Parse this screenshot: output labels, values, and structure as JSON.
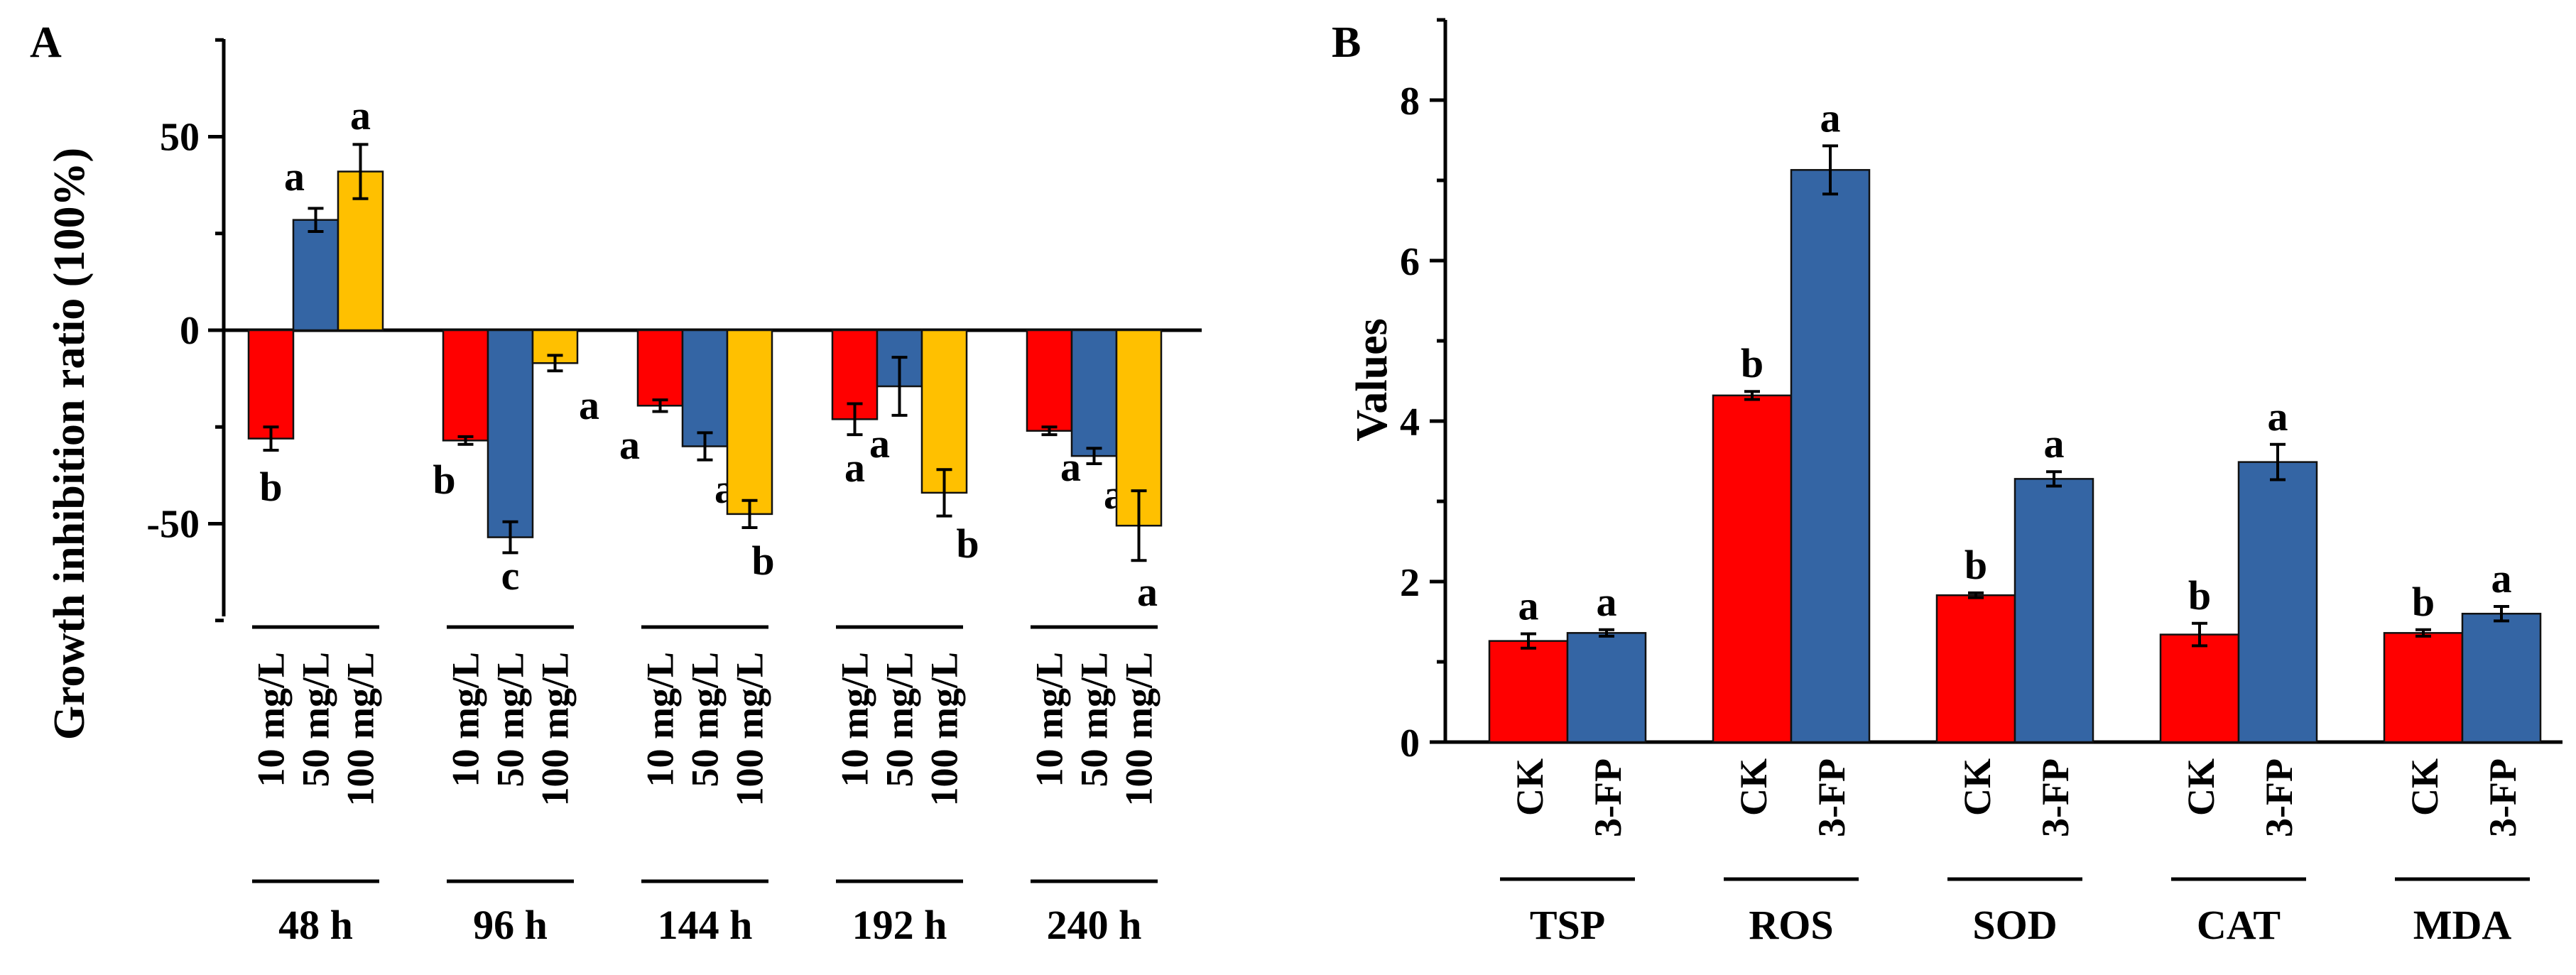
{
  "chart_data": [
    {
      "panel": "A",
      "type": "bar",
      "ylabel": "Growth  inhibition ratio (100%)",
      "ylim": [
        -75,
        75
      ],
      "yticks": [
        -50,
        0,
        50
      ],
      "series_names": [
        "10 mg/L",
        "50 mg/L",
        "100 mg/L"
      ],
      "colors": [
        "#ff0000",
        "#3465a4",
        "#ffc000"
      ],
      "groups": [
        {
          "label": "48 h",
          "values": [
            -28,
            28.5,
            41
          ],
          "errors": [
            3,
            3,
            7
          ],
          "letters": [
            "b",
            "a",
            "a"
          ]
        },
        {
          "label": "96 h",
          "values": [
            -28.5,
            -53.5,
            -8.5
          ],
          "errors": [
            1,
            4,
            2
          ],
          "letters": [
            "b",
            "c",
            "a"
          ]
        },
        {
          "label": "144 h",
          "values": [
            -19.5,
            -30,
            -47.5
          ],
          "errors": [
            1.5,
            3.5,
            3.5
          ],
          "letters": [
            "a",
            "a",
            "b"
          ]
        },
        {
          "label": "192 h",
          "values": [
            -23,
            -14.5,
            -42
          ],
          "errors": [
            4,
            7.5,
            6
          ],
          "letters": [
            "a",
            "a",
            "b"
          ]
        },
        {
          "label": "240 h",
          "values": [
            -26,
            -32.5,
            -50.5
          ],
          "errors": [
            1,
            2,
            9
          ],
          "letters": [
            "a",
            "a",
            "a"
          ]
        }
      ]
    },
    {
      "panel": "B",
      "type": "bar",
      "ylabel": "Values",
      "ylim": [
        0,
        9
      ],
      "yticks": [
        0,
        2,
        4,
        6,
        8
      ],
      "series_names": [
        "CK",
        "3-FP"
      ],
      "colors": [
        "#ff0000",
        "#3465a4"
      ],
      "groups": [
        {
          "label": "TSP",
          "values": [
            1.26,
            1.36
          ],
          "errors": [
            0.09,
            0.04
          ],
          "letters": [
            "a",
            "a"
          ]
        },
        {
          "label": "ROS",
          "values": [
            4.32,
            7.13
          ],
          "errors": [
            0.05,
            0.3
          ],
          "letters": [
            "b",
            "a"
          ]
        },
        {
          "label": "SOD",
          "values": [
            1.83,
            3.28
          ],
          "errors": [
            0.03,
            0.09
          ],
          "letters": [
            "b",
            "a"
          ]
        },
        {
          "label": "CAT",
          "values": [
            1.34,
            3.49
          ],
          "errors": [
            0.14,
            0.22
          ],
          "letters": [
            "b",
            "a"
          ]
        },
        {
          "label": "MDA",
          "values": [
            1.36,
            1.6
          ],
          "errors": [
            0.04,
            0.09
          ],
          "letters": [
            "b",
            "a"
          ]
        }
      ]
    }
  ]
}
